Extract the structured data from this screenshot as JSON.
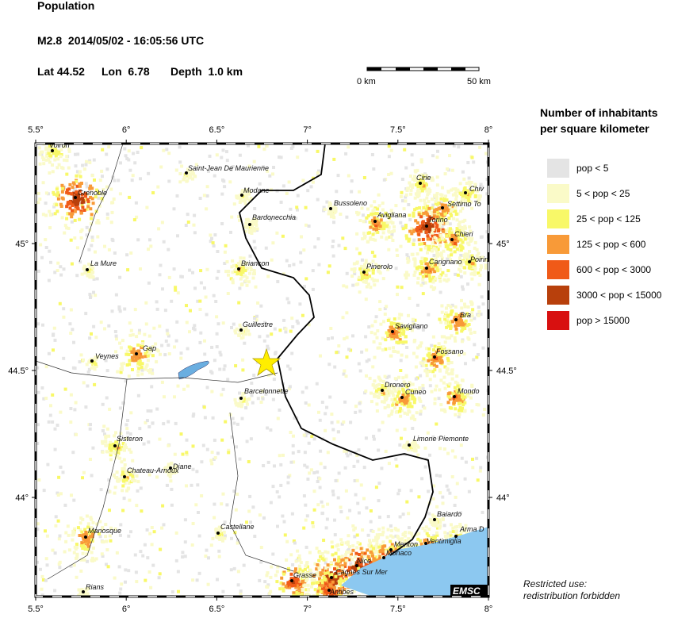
{
  "header": {
    "title": "Population",
    "event": "M2.8  2014/05/02 - 16:05:56 UTC",
    "lat": "Lat 44.52",
    "lon": "Lon  6.78",
    "depth": "Depth  1.0 km"
  },
  "scale_bar": {
    "start": "0 km",
    "end": "50 km"
  },
  "legend": {
    "title": [
      "Number of inhabitants",
      "per square kilometer"
    ],
    "items": [
      {
        "label": "pop < 5",
        "color": "#e4e4e4"
      },
      {
        "label": "5 < pop < 25",
        "color": "#fafac8"
      },
      {
        "label": "25 < pop < 125",
        "color": "#f8f868"
      },
      {
        "label": "125 < pop < 600",
        "color": "#f89a38"
      },
      {
        "label": "600 < pop < 3000",
        "color": "#f05a18"
      },
      {
        "label": "3000 < pop < 15000",
        "color": "#b8400c"
      },
      {
        "label": "pop > 15000",
        "color": "#d81010"
      }
    ]
  },
  "map": {
    "lon_ticks": [
      {
        "value": 5.5,
        "label": "5.5°"
      },
      {
        "value": 6,
        "label": "6°"
      },
      {
        "value": 6.5,
        "label": "6.5°"
      },
      {
        "value": 7,
        "label": "7°"
      },
      {
        "value": 7.5,
        "label": "7.5°"
      },
      {
        "value": 8,
        "label": "8°"
      }
    ],
    "lat_ticks": [
      {
        "value": 44,
        "label": "44°"
      },
      {
        "value": 44.5,
        "label": "44.5°"
      },
      {
        "value": 45,
        "label": "45°"
      }
    ],
    "cities": [
      "Voiron",
      "Grenoble",
      "Saint-Jean De Maurienne",
      "Modane",
      "Bardonecchia",
      "Bussoleno",
      "Avigliana",
      "Cirie",
      "Chiv",
      "Settimo To",
      "Torino",
      "Chieri",
      "Carignano",
      "Poirino",
      "La Mure",
      "Briancon",
      "Pinerolo",
      "Guillestre",
      "Savigliano",
      "Bra",
      "Gap",
      "Veynes",
      "Fossano",
      "Barcelonnette",
      "Dronero",
      "Cuneo",
      "Mondo",
      "Limone Piemonte",
      "Sisteron",
      "Diane",
      "Chateau-Arnoux",
      "Baiardo",
      "Castellane",
      "Manosque",
      "Arma D",
      "Menton",
      "Ventimiglia",
      "Monaco",
      "Nice",
      "Grasse",
      "Cagnes Sur Mer",
      "Antibes",
      "Rians"
    ],
    "credit": "EMSC",
    "notice": [
      "Restricted use:",
      "redistribution forbidden"
    ]
  }
}
